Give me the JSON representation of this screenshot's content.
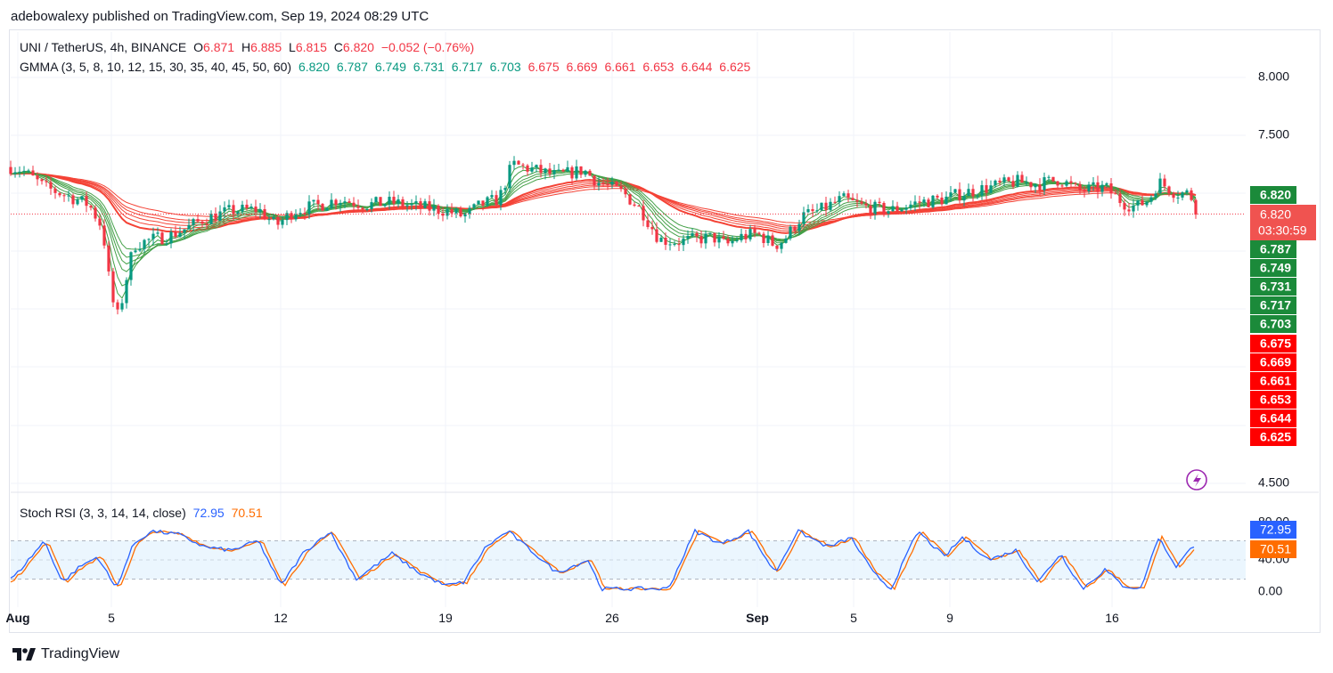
{
  "header": {
    "publish_line": "adebowalexy published on TradingView.com, Sep 19, 2024 08:29 UTC"
  },
  "symbol_legend": {
    "title": "UNI / TetherUS, 4h, BINANCE",
    "open_label": "O",
    "open": "6.871",
    "high_label": "H",
    "high": "6.885",
    "low_label": "L",
    "low": "6.815",
    "close_label": "C",
    "close": "6.820",
    "change": "−0.052 (−0.76%)"
  },
  "gmma_legend": {
    "title": "GMMA (3, 5, 8, 10, 12, 15, 30, 35, 40, 45, 50, 60)",
    "short_values": [
      "6.820",
      "6.787",
      "6.749",
      "6.731",
      "6.717",
      "6.703"
    ],
    "long_values": [
      "6.675",
      "6.669",
      "6.661",
      "6.653",
      "6.644",
      "6.625"
    ]
  },
  "rsi_legend": {
    "title": "Stoch RSI (3, 3, 14, 14, close)",
    "k": "72.95",
    "d": "70.51"
  },
  "price_axis": {
    "ticks": [
      "8.000",
      "7.500",
      "4.500"
    ],
    "current_price": "6.820",
    "countdown": "03:30:59"
  },
  "rsi_axis": {
    "ticks": [
      "80.00",
      "40.00",
      "0.00"
    ]
  },
  "time_axis": {
    "labels": [
      "Aug",
      "5",
      "12",
      "19",
      "26",
      "Sep",
      "5",
      "9",
      "16"
    ]
  },
  "brand": {
    "name": "TradingView"
  },
  "colors": {
    "up": "#089981",
    "down": "#f23645",
    "gmma_short": "#43a047",
    "gmma_long": "#f44336",
    "stoch_k": "#2962ff",
    "stoch_d": "#ff6d00",
    "rsi_band": "#e3f2fd",
    "flash": "#9c27b0"
  },
  "chart_data": [
    {
      "type": "candlestick",
      "symbol": "UNI / TetherUS",
      "interval": "4h",
      "exchange": "BINANCE",
      "x_labels": [
        "Aug",
        "5",
        "12",
        "19",
        "26",
        "Sep",
        "5",
        "9",
        "16"
      ],
      "price_path": [
        [
          0,
          7.25
        ],
        [
          25,
          7.2
        ],
        [
          50,
          7.05
        ],
        [
          75,
          6.98
        ],
        [
          100,
          6.9
        ],
        [
          115,
          6.7
        ],
        [
          125,
          6.1
        ],
        [
          133,
          5.92
        ],
        [
          140,
          6.2
        ],
        [
          150,
          6.55
        ],
        [
          170,
          6.6
        ],
        [
          190,
          6.63
        ],
        [
          210,
          6.7
        ],
        [
          230,
          6.78
        ],
        [
          260,
          6.85
        ],
        [
          290,
          6.86
        ],
        [
          310,
          6.72
        ],
        [
          330,
          6.85
        ],
        [
          360,
          6.9
        ],
        [
          380,
          6.95
        ],
        [
          410,
          6.9
        ],
        [
          440,
          6.92
        ],
        [
          470,
          6.88
        ],
        [
          500,
          6.85
        ],
        [
          520,
          6.8
        ],
        [
          540,
          6.9
        ],
        [
          560,
          6.95
        ],
        [
          575,
          7.25
        ],
        [
          600,
          7.2
        ],
        [
          625,
          7.15
        ],
        [
          655,
          7.2
        ],
        [
          670,
          7.1
        ],
        [
          700,
          7.0
        ],
        [
          720,
          6.85
        ],
        [
          740,
          6.6
        ],
        [
          760,
          6.58
        ],
        [
          780,
          6.6
        ],
        [
          800,
          6.62
        ],
        [
          815,
          6.55
        ],
        [
          830,
          6.62
        ],
        [
          850,
          6.65
        ],
        [
          870,
          6.55
        ],
        [
          880,
          6.6
        ],
        [
          900,
          6.8
        ],
        [
          920,
          6.85
        ],
        [
          945,
          6.95
        ],
        [
          970,
          6.88
        ],
        [
          1000,
          6.85
        ],
        [
          1030,
          6.92
        ],
        [
          1060,
          6.95
        ],
        [
          1080,
          7.0
        ],
        [
          1110,
          7.05
        ],
        [
          1140,
          7.1
        ],
        [
          1165,
          7.08
        ],
        [
          1190,
          7.12
        ],
        [
          1210,
          7.02
        ],
        [
          1240,
          7.05
        ],
        [
          1260,
          6.92
        ],
        [
          1275,
          6.88
        ],
        [
          1290,
          6.95
        ],
        [
          1300,
          7.1
        ],
        [
          1320,
          7.0
        ],
        [
          1335,
          7.0
        ],
        [
          1345,
          6.82
        ]
      ],
      "gmma_short_periods": [
        3,
        5,
        8,
        10,
        12,
        15
      ],
      "gmma_short_last": [
        6.82,
        6.787,
        6.749,
        6.731,
        6.717,
        6.703
      ],
      "gmma_long_periods": [
        30,
        35,
        40,
        45,
        50,
        60
      ],
      "gmma_long_last": [
        6.675,
        6.669,
        6.661,
        6.653,
        6.644,
        6.625
      ],
      "last": {
        "open": 6.871,
        "high": 6.885,
        "low": 6.815,
        "close": 6.82,
        "change": -0.052,
        "change_pct": -0.76
      }
    },
    {
      "type": "line",
      "title": "Stoch RSI (3, 3, 14, 14, close)",
      "ylim": [
        0,
        100
      ],
      "bands": [
        20,
        80
      ],
      "stoch_rsi_path": [
        [
          0,
          5
        ],
        [
          20,
          30
        ],
        [
          50,
          80
        ],
        [
          70,
          15
        ],
        [
          90,
          40
        ],
        [
          110,
          55
        ],
        [
          130,
          5
        ],
        [
          150,
          75
        ],
        [
          170,
          95
        ],
        [
          200,
          90
        ],
        [
          230,
          70
        ],
        [
          260,
          65
        ],
        [
          290,
          80
        ],
        [
          315,
          10
        ],
        [
          340,
          60
        ],
        [
          370,
          95
        ],
        [
          400,
          20
        ],
        [
          440,
          60
        ],
        [
          470,
          30
        ],
        [
          500,
          10
        ],
        [
          520,
          15
        ],
        [
          545,
          70
        ],
        [
          570,
          95
        ],
        [
          600,
          60
        ],
        [
          625,
          30
        ],
        [
          660,
          50
        ],
        [
          675,
          5
        ],
        [
          700,
          5
        ],
        [
          750,
          5
        ],
        [
          780,
          95
        ],
        [
          810,
          75
        ],
        [
          840,
          95
        ],
        [
          870,
          30
        ],
        [
          895,
          95
        ],
        [
          930,
          70
        ],
        [
          955,
          85
        ],
        [
          980,
          30
        ],
        [
          1000,
          5
        ],
        [
          1030,
          95
        ],
        [
          1060,
          55
        ],
        [
          1080,
          85
        ],
        [
          1110,
          50
        ],
        [
          1140,
          65
        ],
        [
          1165,
          15
        ],
        [
          1190,
          60
        ],
        [
          1215,
          5
        ],
        [
          1240,
          35
        ],
        [
          1260,
          10
        ],
        [
          1280,
          5
        ],
        [
          1300,
          85
        ],
        [
          1320,
          40
        ],
        [
          1340,
          73
        ]
      ],
      "k_last": 72.95,
      "d_last": 70.51
    }
  ]
}
